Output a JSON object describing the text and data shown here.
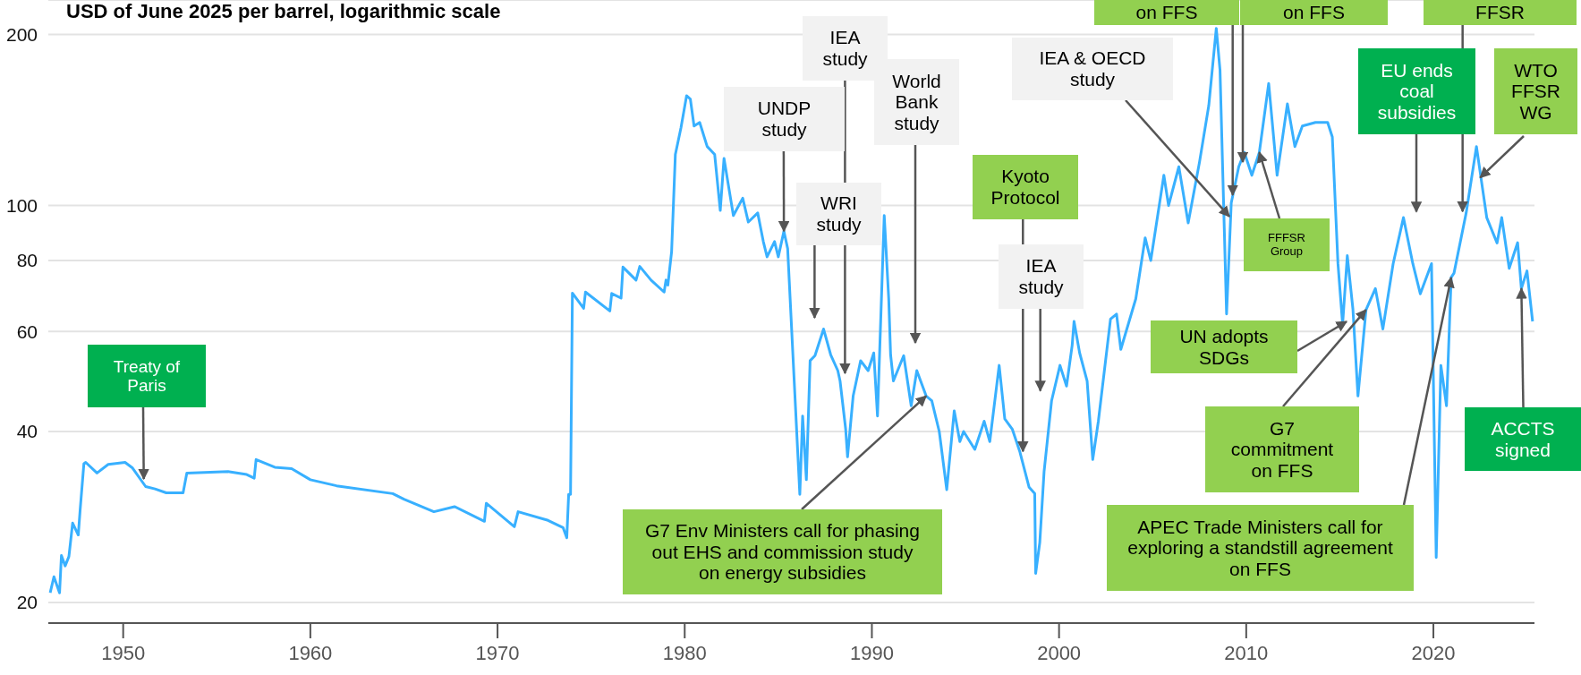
{
  "chart_data": {
    "type": "line",
    "ylabel": "USD of June 2025 per barrel, logarithmic scale",
    "log": "y",
    "grid": "y",
    "xlim": [
      1946,
      2025.4
    ],
    "xticks": [
      1950,
      1960,
      1970,
      1980,
      1990,
      2000,
      2010,
      2020
    ],
    "ylim": [
      18.4,
      230
    ],
    "yticks": [
      20,
      40,
      60,
      80,
      100,
      200
    ],
    "x": [
      1946.1,
      1946.3,
      1946.6,
      1946.7,
      1946.9,
      1947.1,
      1947.3,
      1947.6,
      1947.7,
      1947.9,
      1948.0,
      1948.6,
      1949.2,
      1950.1,
      1950.5,
      1951.2,
      1951.7,
      1952.3,
      1953.2,
      1953.4,
      1955.6,
      1956.6,
      1957.0,
      1957.1,
      1958.1,
      1959.0,
      1960.0,
      1961.4,
      1964.4,
      1965.0,
      1966.6,
      1967.7,
      1969.3,
      1969.4,
      1970.9,
      1971.1,
      1972.7,
      1973.5,
      1973.7,
      1973.8,
      1973.9,
      1974.0,
      1974.6,
      1974.7,
      1976.0,
      1976.1,
      1976.6,
      1976.7,
      1977.4,
      1977.6,
      1978.2,
      1978.9,
      1979.0,
      1979.1,
      1979.3,
      1979.5,
      1979.8,
      1980.1,
      1980.3,
      1980.5,
      1980.8,
      1981.2,
      1981.6,
      1981.9,
      1982.1,
      1982.6,
      1983.1,
      1983.4,
      1983.9,
      1984.2,
      1984.4,
      1984.8,
      1985.0,
      1985.3,
      1985.5,
      1986.15,
      1986.3,
      1986.5,
      1986.7,
      1986.96,
      1987.42,
      1987.8,
      1988.18,
      1988.3,
      1988.6,
      1988.7,
      1989.0,
      1989.4,
      1989.8,
      1990.1,
      1990.3,
      1990.66,
      1990.9,
      1991.0,
      1991.15,
      1991.7,
      1992.1,
      1992.4,
      1992.9,
      1993.2,
      1993.6,
      1994.0,
      1994.4,
      1994.7,
      1994.9,
      1995.5,
      1996.0,
      1996.3,
      1996.8,
      1997.1,
      1997.5,
      1997.9,
      1998.4,
      1998.7,
      1998.75,
      1998.97,
      1999.2,
      1999.6,
      2000.05,
      2000.4,
      2000.7,
      2000.8,
      2001.1,
      2001.5,
      2001.8,
      2002.1,
      2002.75,
      2003.07,
      2003.3,
      2004.1,
      2004.6,
      2004.9,
      2005.6,
      2005.85,
      2006.4,
      2006.9,
      2007.5,
      2008.0,
      2008.4,
      2008.6,
      2008.95,
      2009.2,
      2009.6,
      2009.9,
      2010.3,
      2010.7,
      2011.2,
      2011.65,
      2012.2,
      2012.6,
      2013.0,
      2013.7,
      2014.35,
      2014.6,
      2014.9,
      2015.15,
      2015.4,
      2015.7,
      2015.97,
      2016.4,
      2016.9,
      2017.3,
      2017.85,
      2018.4,
      2018.9,
      2019.3,
      2019.9,
      2020.15,
      2020.4,
      2020.7,
      2020.95,
      2021.1,
      2021.75,
      2022.3,
      2022.85,
      2023.4,
      2023.65,
      2024.05,
      2024.5,
      2024.7,
      2025.0,
      2025.3
    ],
    "series": [
      {
        "color": "#38b0ff",
        "values": [
          20.8,
          22.2,
          20.8,
          24.2,
          23.2,
          24.1,
          27.6,
          26.3,
          29.1,
          35.1,
          35.3,
          33.8,
          35.0,
          35.3,
          34.5,
          32.0,
          31.7,
          31.2,
          31.2,
          33.8,
          34.0,
          33.6,
          33.1,
          35.7,
          34.6,
          34.4,
          32.9,
          32.1,
          31.1,
          30.4,
          28.9,
          29.5,
          27.8,
          29.9,
          27.2,
          28.9,
          27.9,
          27.1,
          26.0,
          31.0,
          31.0,
          70.1,
          65.9,
          70.4,
          65.2,
          70.0,
          68.7,
          77.9,
          73.9,
          78.1,
          73.9,
          70.4,
          73.9,
          72.4,
          82.9,
          123,
          137,
          156,
          154,
          138,
          140,
          127,
          123,
          98,
          121,
          96,
          103,
          93.5,
          97,
          86.4,
          81.2,
          86.4,
          81.2,
          90.1,
          84,
          31.0,
          42.6,
          32.9,
          53.3,
          54.4,
          60.6,
          54.6,
          51.2,
          49.1,
          40.4,
          36.1,
          46.2,
          53.3,
          51.2,
          55.0,
          42.6,
          96,
          68.5,
          54.6,
          49.1,
          54.4,
          44.4,
          51.2,
          46.2,
          45.3,
          40.0,
          31.6,
          43.5,
          38.4,
          40.0,
          37.2,
          41.7,
          38.4,
          52.3,
          42.1,
          40.4,
          36.9,
          31.9,
          31.1,
          22.5,
          25.5,
          34.0,
          45.3,
          52.3,
          48.1,
          56.7,
          62.5,
          55,
          49.1,
          35.7,
          41.7,
          63.1,
          64.4,
          55.8,
          68.5,
          87.7,
          80,
          113,
          100,
          117,
          93.2,
          119,
          150,
          205,
          173,
          64.4,
          101,
          117,
          124,
          113,
          124,
          164,
          113,
          151,
          127,
          138,
          140,
          140,
          132,
          79.1,
          61.8,
          81.6,
          65.7,
          46.2,
          65.5,
          71.4,
          60.6,
          79,
          95.2,
          79,
          69.9,
          79,
          24.0,
          52.3,
          44.4,
          74.7,
          76,
          97,
          127,
          95.2,
          85.9,
          95.2,
          77.5,
          86,
          71.4,
          76.7,
          62.5
        ]
      }
    ],
    "annotations": [
      {
        "text": "Treaty of Paris",
        "x": 1951.1,
        "y": 33.0
      },
      "on FFS",
      "on FFS",
      {
        "text": "FFSR",
        "x": 2021.56,
        "y": 97.6
      },
      "IEA study",
      {
        "text": "UNDP study",
        "x": 1985.3,
        "y": 90.1
      },
      "World Bank study",
      "WRI study",
      {
        "text": "IEA & OECD study",
        "x": 2009.1,
        "y": 95.6
      },
      {
        "text": "Kyoto Protocol",
        "x": 1998.07,
        "y": 36.9
      },
      "IEA study",
      {
        "text": "FFFSR Group",
        "x": 2010.7,
        "y": 124
      },
      "EU ends coal subsidies",
      {
        "text": "WTO FFSR WG",
        "x": 2022.5,
        "y": 112
      },
      "UN adopts SDGs",
      {
        "text": "G7 Env Ministers call for phasing out EHS and commission study on energy subsidies",
        "x": 1992.9,
        "y": 46.2
      },
      {
        "text": "G7 commitment on FFS",
        "x": 2016.4,
        "y": 65.5
      },
      {
        "text": "APEC Trade Ministers call for exploring a standstill agreement on FFS",
        "x": 2020.95,
        "y": 74.7
      },
      {
        "text": "ACCTS signed",
        "x": 2024.7,
        "y": 71.4
      }
    ]
  }
}
